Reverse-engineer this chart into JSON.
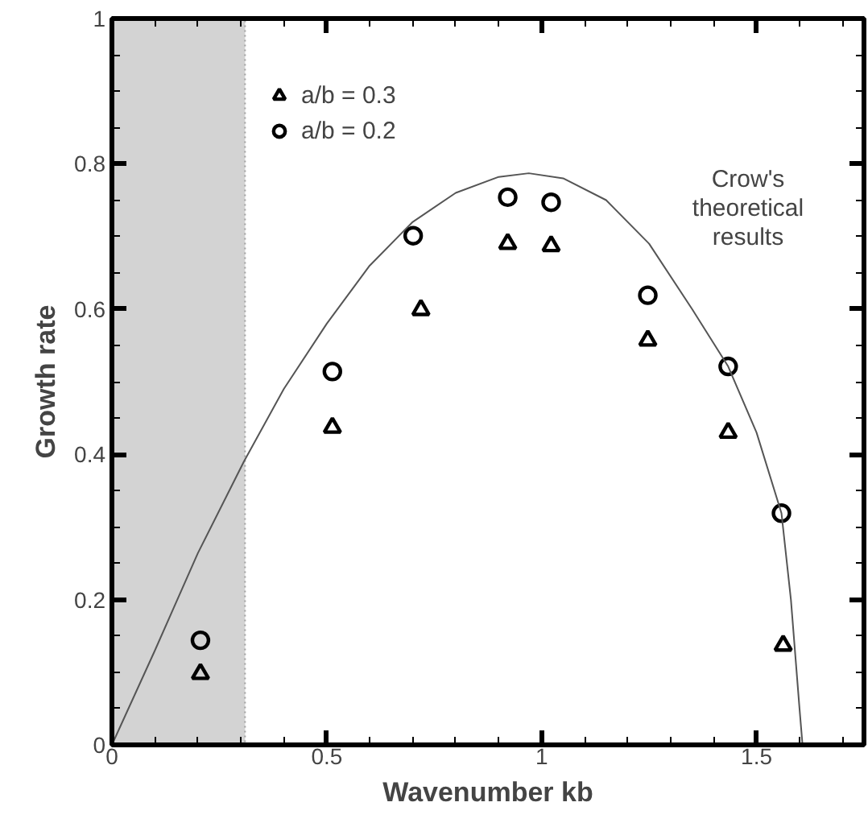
{
  "chart_data": {
    "type": "scatter",
    "xlabel": "Wavenumber kb",
    "ylabel": "Growth rate",
    "xlim": [
      0,
      1.75
    ],
    "ylim": [
      0,
      1
    ],
    "xticks": [
      0,
      0.5,
      1,
      1.5
    ],
    "yticks": [
      0,
      0.2,
      0.4,
      0.6,
      0.8,
      1
    ],
    "grid": false,
    "legend": "top left",
    "bands": [
      {
        "axis": "x",
        "from": 0,
        "to": 0.31,
        "color": "#d3d3d3"
      }
    ],
    "annotations": [
      "Crow's\ntheoretical\nresults"
    ],
    "series": [
      {
        "name": "a/b = 0.3",
        "marker": "triangle",
        "color": "#000000",
        "x": [
          0.206,
          0.513,
          0.719,
          0.921,
          1.022,
          1.247,
          1.434,
          1.562
        ],
        "values": [
          0.098,
          0.437,
          0.599,
          0.69,
          0.687,
          0.557,
          0.43,
          0.137
        ]
      },
      {
        "name": "a/b = 0.2",
        "marker": "circle",
        "color": "#000000",
        "x": [
          0.206,
          0.513,
          0.701,
          0.921,
          1.022,
          1.247,
          1.434,
          1.558
        ],
        "values": [
          0.144,
          0.514,
          0.701,
          0.754,
          0.747,
          0.619,
          0.521,
          0.319
        ]
      },
      {
        "type": "line",
        "color": "#555555",
        "line_style": "solid",
        "x": [
          0,
          0.1,
          0.2,
          0.307,
          0.4,
          0.5,
          0.6,
          0.7,
          0.8,
          0.9,
          0.97,
          1.05,
          1.15,
          1.25,
          1.35,
          1.434,
          1.5,
          1.558,
          1.58,
          1.6,
          1.607
        ],
        "values": [
          0,
          0.13,
          0.264,
          0.39,
          0.49,
          0.58,
          0.66,
          0.72,
          0.76,
          0.782,
          0.787,
          0.78,
          0.75,
          0.69,
          0.6,
          0.521,
          0.43,
          0.319,
          0.2,
          0.05,
          0
        ]
      }
    ]
  }
}
